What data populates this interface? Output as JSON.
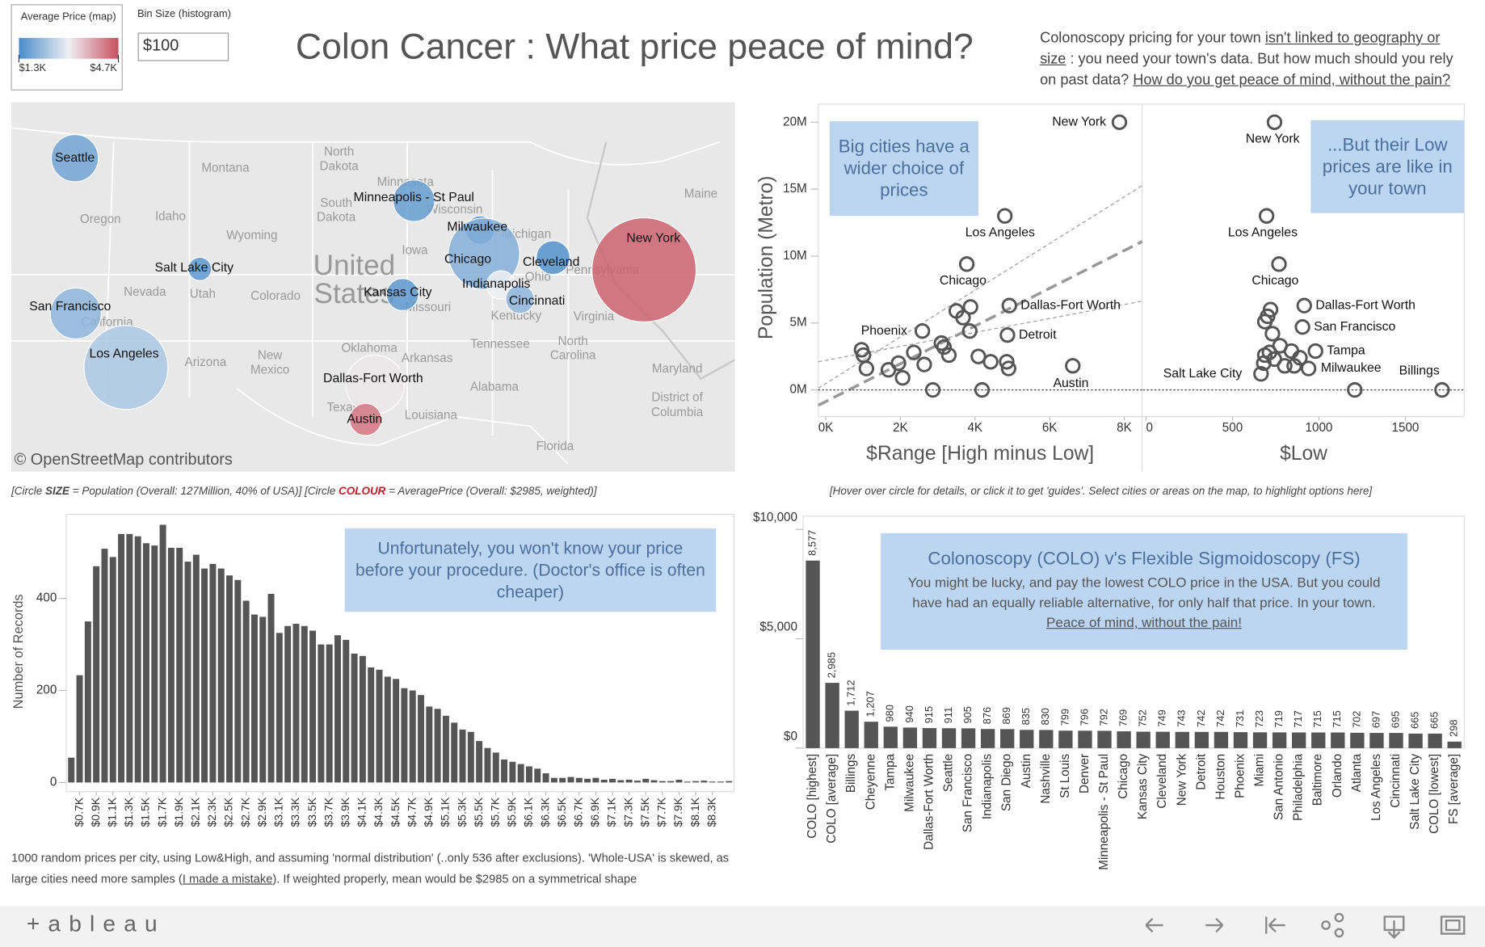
{
  "header": {
    "title": "Colon Cancer :  What price peace of mind?",
    "description": [
      {
        "text": "Colonoscopy pricing for your town ",
        "link": false
      },
      {
        "text": "isn't linked to geography or size",
        "link": true
      },
      {
        "text": " : you need your town's data. But how much should you rely on past data? ",
        "link": false
      },
      {
        "text": "How do you get peace of mind, without the pain?",
        "link": true
      }
    ],
    "legend": {
      "title": "Average Price (map)",
      "ticks": [
        {
          "value": 1300,
          "label": "$1.3K"
        },
        {
          "value": 4700,
          "label": "$4.7K"
        }
      ],
      "colors": [
        "#4a8ccb",
        "#eef0f3",
        "#c9505f"
      ]
    },
    "bin_size": {
      "label": "Bin Size (histogram)",
      "value": "$100"
    }
  },
  "chart_data": [
    {
      "type": "map",
      "attribution": "© OpenStreetMap contributors",
      "region_labels": [
        "Montana",
        "North",
        "Dakota",
        "South",
        "Dakota",
        "Minnesota",
        "Wisconsin",
        "Michigan",
        "Oregon",
        "Idaho",
        "Wyoming",
        "Iowa",
        "Nevada",
        "Utah",
        "Colorado",
        "Missouri",
        "Ohio",
        "Pennsylvania",
        "Kentucky",
        "Virginia",
        "Tennessee",
        "North",
        "Carolina",
        "Oklahoma",
        "Arkansas",
        "Arizona",
        "New",
        "Mexico",
        "Alabama",
        "Texas",
        "Louisiana",
        "Florida",
        "California",
        "Maryland",
        "District of",
        "Columbia",
        "Maine",
        "United",
        "States"
      ],
      "cities": [
        "Seattle",
        "Minneapolis - St Paul",
        "Milwaukee",
        "Chicago",
        "Cleveland",
        "New York",
        "Salt Lake City",
        "Kansas City",
        "Indianapolis",
        "Cincinnati",
        "San Francisco",
        "Los Angeles",
        "Dallas-Fort Worth",
        "Austin"
      ],
      "population": [
        4100000,
        3200000,
        1500000,
        9400000,
        2100000,
        20000000,
        1000000,
        1900000,
        1500000,
        1500000,
        4800000,
        13000000,
        6300000,
        1900000
      ],
      "avg_price": [
        1700,
        1600,
        1400,
        1900,
        1400,
        4500,
        1500,
        1500,
        3000,
        2000,
        2000,
        2300,
        3100,
        4300
      ]
    },
    {
      "type": "scatter",
      "x_label": "$Range [High minus Low]",
      "y_label": "Population (Metro)",
      "annotation": "Big cities have a wider choice of prices",
      "xlim": [
        -200,
        8480
      ],
      "ylim": [
        -2000000,
        21350000
      ],
      "xticks": [
        {
          "value": 0,
          "label": "0K"
        },
        {
          "value": 2000,
          "label": "2K"
        },
        {
          "value": 4000,
          "label": "4K"
        },
        {
          "value": 6000,
          "label": "6K"
        },
        {
          "value": 8000,
          "label": "8K"
        }
      ],
      "yticks": [
        {
          "value": 0,
          "label": "0M"
        },
        {
          "value": 5000000,
          "label": "5M"
        },
        {
          "value": 10000000,
          "label": "10M"
        },
        {
          "value": 15000000,
          "label": "15M"
        },
        {
          "value": 20000000,
          "label": "20M"
        }
      ],
      "x": [
        7870,
        4800,
        3780,
        4920,
        2590,
        4870,
        6620,
        3500,
        3880,
        3680,
        3860,
        3100,
        3300,
        3170,
        2360,
        1950,
        1680,
        2060,
        2640,
        960,
        1090,
        1010,
        4090,
        4420,
        4850,
        4900,
        2870,
        4190
      ],
      "y": [
        20000000,
        13000000,
        9400000,
        6300000,
        4400000,
        4100000,
        1800000,
        5900000,
        6200000,
        5400000,
        4400000,
        3500000,
        2600000,
        3200000,
        2800000,
        2000000,
        1500000,
        900000,
        1900000,
        3000000,
        1600000,
        2600000,
        2500000,
        2100000,
        2100000,
        1600000,
        0,
        0
      ],
      "point_labels": [
        "New York",
        "Los Angeles",
        "Chicago",
        "Dallas-Fort Worth",
        "Phoenix",
        "Detroit",
        "Austin",
        null,
        null,
        null,
        null,
        null,
        null,
        null,
        null,
        null,
        null,
        null,
        null,
        null,
        null,
        null,
        null,
        null,
        null,
        null,
        null,
        null
      ]
    },
    {
      "type": "scatter",
      "x_label": "$Low",
      "annotation": "...But their Low prices are like in your town",
      "xlim": [
        -17,
        1840
      ],
      "ylim": [
        -2000000,
        21350000
      ],
      "xticks": [
        0,
        500,
        1000,
        1500
      ],
      "x": [
        743,
        697,
        769,
        915,
        905,
        980,
        940,
        665,
        1712,
        1207,
        703,
        720,
        687,
        731,
        775,
        714,
        742,
        681,
        802,
        857,
        841,
        890,
        687
      ],
      "y": [
        20000000,
        13000000,
        9400000,
        6300000,
        4700000,
        2900000,
        1600000,
        1200000,
        0,
        0,
        5500000,
        6000000,
        5100000,
        4200000,
        3300000,
        2800000,
        2300000,
        2000000,
        1800000,
        1800000,
        2900000,
        2400000,
        2600000
      ],
      "point_labels": [
        "New York",
        "Los Angeles",
        "Chicago",
        "Dallas-Fort Worth",
        "San Francisco",
        "Tampa",
        "Milwaukee",
        "Salt Lake City",
        "Billings",
        null,
        null,
        null,
        null,
        null,
        null,
        null,
        null,
        null,
        null,
        null,
        null,
        null,
        null
      ]
    },
    {
      "type": "histogram",
      "y_label": "Number of Records",
      "annotation": "Unfortunately, you won't know your price before your procedure. (Doctor's office is often cheaper)",
      "color": "#555555",
      "xlim": [
        590,
        8610
      ],
      "ylim": [
        -20,
        583
      ],
      "yticks": [
        0,
        200,
        400
      ],
      "bins": [
        600,
        700,
        800,
        900,
        1000,
        1100,
        1200,
        1300,
        1400,
        1500,
        1600,
        1700,
        1800,
        1900,
        2000,
        2100,
        2200,
        2300,
        2400,
        2500,
        2600,
        2700,
        2800,
        2900,
        3000,
        3100,
        3200,
        3300,
        3400,
        3500,
        3600,
        3700,
        3800,
        3900,
        4000,
        4100,
        4200,
        4300,
        4400,
        4500,
        4600,
        4700,
        4800,
        4900,
        5000,
        5100,
        5200,
        5300,
        5400,
        5500,
        5600,
        5700,
        5800,
        5900,
        6000,
        6100,
        6200,
        6300,
        6400,
        6500,
        6600,
        6700,
        6800,
        6900,
        7000,
        7100,
        7200,
        7300,
        7400,
        7500,
        7600,
        7700,
        7800,
        7900,
        8000,
        8100,
        8200,
        8300,
        8400,
        8500,
        8600
      ],
      "values": [
        54,
        233,
        350,
        470,
        508,
        490,
        540,
        540,
        535,
        520,
        515,
        560,
        510,
        510,
        480,
        495,
        465,
        475,
        465,
        450,
        440,
        395,
        365,
        360,
        410,
        325,
        340,
        345,
        340,
        330,
        300,
        300,
        320,
        310,
        280,
        275,
        250,
        245,
        230,
        225,
        205,
        200,
        190,
        165,
        160,
        145,
        130,
        115,
        110,
        90,
        75,
        65,
        50,
        45,
        40,
        35,
        30,
        20,
        10,
        10,
        12,
        10,
        8,
        10,
        6,
        8,
        5,
        6,
        4,
        8,
        5,
        3,
        3,
        6,
        2,
        3,
        4,
        2,
        2,
        3
      ],
      "xticks": [
        {
          "value": 700,
          "label": "$0.7K"
        },
        {
          "value": 900,
          "label": "$0.9K"
        },
        {
          "value": 1100,
          "label": "$1.1K"
        },
        {
          "value": 1300,
          "label": "$1.3K"
        },
        {
          "value": 1500,
          "label": "$1.5K"
        },
        {
          "value": 1700,
          "label": "$1.7K"
        },
        {
          "value": 1900,
          "label": "$1.9K"
        },
        {
          "value": 2100,
          "label": "$2.1K"
        },
        {
          "value": 2300,
          "label": "$2.3K"
        },
        {
          "value": 2500,
          "label": "$2.5K"
        },
        {
          "value": 2700,
          "label": "$2.7K"
        },
        {
          "value": 2900,
          "label": "$2.9K"
        },
        {
          "value": 3100,
          "label": "$3.1K"
        },
        {
          "value": 3300,
          "label": "$3.3K"
        },
        {
          "value": 3500,
          "label": "$3.5K"
        },
        {
          "value": 3700,
          "label": "$3.7K"
        },
        {
          "value": 3900,
          "label": "$3.9K"
        },
        {
          "value": 4100,
          "label": "$4.1K"
        },
        {
          "value": 4300,
          "label": "$4.3K"
        },
        {
          "value": 4500,
          "label": "$4.5K"
        },
        {
          "value": 4700,
          "label": "$4.7K"
        },
        {
          "value": 4900,
          "label": "$4.9K"
        },
        {
          "value": 5100,
          "label": "$5.1K"
        },
        {
          "value": 5300,
          "label": "$5.3K"
        },
        {
          "value": 5500,
          "label": "$5.5K"
        },
        {
          "value": 5700,
          "label": "$5.7K"
        },
        {
          "value": 5900,
          "label": "$5.9K"
        },
        {
          "value": 6100,
          "label": "$6.1K"
        },
        {
          "value": 6300,
          "label": "$6.3K"
        },
        {
          "value": 6500,
          "label": "$6.5K"
        },
        {
          "value": 6700,
          "label": "$6.7K"
        },
        {
          "value": 6900,
          "label": "$6.9K"
        },
        {
          "value": 7100,
          "label": "$7.1K"
        },
        {
          "value": 7300,
          "label": "$7.3K"
        },
        {
          "value": 7500,
          "label": "$7.5K"
        },
        {
          "value": 7700,
          "label": "$7.7K"
        },
        {
          "value": 7900,
          "label": "$7.9K"
        },
        {
          "value": 8100,
          "label": "$8.1K"
        },
        {
          "value": 8300,
          "label": "$8.3K"
        }
      ]
    },
    {
      "type": "bar",
      "color": "#555555",
      "annotation_title": "Colonoscopy (COLO) v's Flexible Sigmoidoscopy (FS)",
      "annotation_body": [
        {
          "text": "You might be lucky, and pay the lowest COLO price in the USA.  But you could have had an equally reliable alternative, for only half that price. In your town.  ",
          "link": false
        },
        {
          "text": "Peace of mind, without the pain!",
          "link": true
        }
      ],
      "ylim": [
        0,
        10610
      ],
      "yticks": [
        {
          "value": 0,
          "label": "$0"
        },
        {
          "value": 5000,
          "label": "$5,000"
        },
        {
          "value": 10000,
          "label": "$10,000"
        }
      ],
      "categories": [
        "COLO [highest]",
        "COLO [average]",
        "Billings",
        "Cheyenne",
        "Tampa",
        "Milwaukee",
        "Dallas-Fort Worth",
        "Seattle",
        "San Francisco",
        "Indianapolis",
        "San Diego",
        "Austin",
        "Nashville",
        "St Louis",
        "Denver",
        "Minneapolis - St Paul",
        "Chicago",
        "Kansas City",
        "Cleveland",
        "New York",
        "Detroit",
        "Houston",
        "Phoenix",
        "Miami",
        "San Antonio",
        "Philadelphia",
        "Baltimore",
        "Orlando",
        "Atlanta",
        "Los Angeles",
        "Cincinnati",
        "Salt Lake City",
        "COLO [lowest]",
        "FS [average]"
      ],
      "values": [
        8577,
        2985,
        1712,
        1207,
        980,
        940,
        915,
        911,
        905,
        876,
        869,
        835,
        830,
        799,
        796,
        792,
        769,
        752,
        749,
        743,
        742,
        742,
        731,
        723,
        719,
        717,
        715,
        715,
        702,
        697,
        695,
        665,
        665,
        298
      ],
      "value_labels": [
        "8,577",
        "2,985",
        "1,712",
        "1,207",
        "980",
        "940",
        "915",
        "911",
        "905",
        "876",
        "869",
        "835",
        "830",
        "799",
        "796",
        "792",
        "769",
        "752",
        "749",
        "743",
        "742",
        "742",
        "731",
        "723",
        "719",
        "717",
        "715",
        "715",
        "702",
        "697",
        "695",
        "665",
        "665",
        "298"
      ]
    }
  ],
  "notes": {
    "map_note": [
      {
        "text": "[Circle ",
        "style": "plain"
      },
      {
        "text": "SIZE",
        "style": "strong"
      },
      {
        "text": " = Population (Overall: 127Million, 40% of USA)]  [Circle ",
        "style": "plain"
      },
      {
        "text": "COLOUR",
        "style": "strong-red"
      },
      {
        "text": " = AveragePrice (Overall: $2985, weighted)]",
        "style": "plain"
      }
    ],
    "scatter_note": "[Hover over circle for details, or click it to get 'guides'. Select cities or areas on the map, to highlight options here]",
    "hist_note": [
      {
        "text": "1000 random prices per city, using Low&High, and assuming 'normal distribution' (..only 536 after exclusions). 'Whole-USA' is skewed, as large cities need more samples (",
        "link": false
      },
      {
        "text": "I made a mistake",
        "link": true
      },
      {
        "text": "). If weighted properly, mean would be $2985 on a symmetrical shape",
        "link": false
      }
    ]
  },
  "footer": {
    "brand": "+ a b l e a u"
  }
}
